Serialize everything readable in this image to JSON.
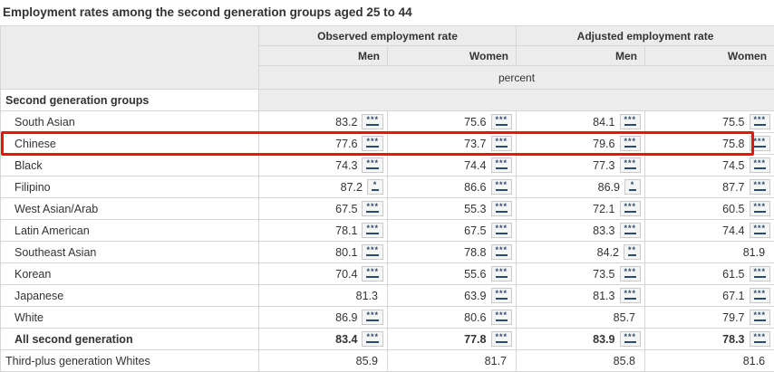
{
  "title": "Employment rates among the second generation groups aged 25 to 44",
  "colors": {
    "header_bg": "#ececec",
    "border": "#d6d6d6",
    "text": "#333333",
    "footnote_navy": "#2b4a6f",
    "highlight_red": "#ee1111"
  },
  "table": {
    "col_groups": [
      {
        "label": "Observed employment rate",
        "sub": [
          "Men",
          "Women"
        ]
      },
      {
        "label": "Adjusted employment rate",
        "sub": [
          "Men",
          "Women"
        ]
      }
    ],
    "unit_row": "percent",
    "group_header": "Second generation groups",
    "rows": [
      {
        "label": "South Asian",
        "indent": true,
        "bold": false,
        "highlight": false,
        "cells": [
          {
            "v": "83.2",
            "m": "***"
          },
          {
            "v": "75.6",
            "m": "***"
          },
          {
            "v": "84.1",
            "m": "***"
          },
          {
            "v": "75.5",
            "m": "***"
          }
        ]
      },
      {
        "label": "Chinese",
        "indent": true,
        "bold": false,
        "highlight": true,
        "cells": [
          {
            "v": "77.6",
            "m": "***"
          },
          {
            "v": "73.7",
            "m": "***"
          },
          {
            "v": "79.6",
            "m": "***"
          },
          {
            "v": "75.8",
            "m": "***"
          }
        ]
      },
      {
        "label": "Black",
        "indent": true,
        "bold": false,
        "highlight": false,
        "cells": [
          {
            "v": "74.3",
            "m": "***"
          },
          {
            "v": "74.4",
            "m": "***"
          },
          {
            "v": "77.3",
            "m": "***"
          },
          {
            "v": "74.5",
            "m": "***"
          }
        ]
      },
      {
        "label": "Filipino",
        "indent": true,
        "bold": false,
        "highlight": false,
        "cells": [
          {
            "v": "87.2",
            "m": "*"
          },
          {
            "v": "86.6",
            "m": "***"
          },
          {
            "v": "86.9",
            "m": "*"
          },
          {
            "v": "87.7",
            "m": "***"
          }
        ]
      },
      {
        "label": "West Asian/Arab",
        "indent": true,
        "bold": false,
        "highlight": false,
        "cells": [
          {
            "v": "67.5",
            "m": "***"
          },
          {
            "v": "55.3",
            "m": "***"
          },
          {
            "v": "72.1",
            "m": "***"
          },
          {
            "v": "60.5",
            "m": "***"
          }
        ]
      },
      {
        "label": "Latin American",
        "indent": true,
        "bold": false,
        "highlight": false,
        "cells": [
          {
            "v": "78.1",
            "m": "***"
          },
          {
            "v": "67.5",
            "m": "***"
          },
          {
            "v": "83.3",
            "m": "***"
          },
          {
            "v": "74.4",
            "m": "***"
          }
        ]
      },
      {
        "label": "Southeast Asian",
        "indent": true,
        "bold": false,
        "highlight": false,
        "cells": [
          {
            "v": "80.1",
            "m": "***"
          },
          {
            "v": "78.8",
            "m": "***"
          },
          {
            "v": "84.2",
            "m": "**"
          },
          {
            "v": "81.9",
            "m": null
          }
        ]
      },
      {
        "label": "Korean",
        "indent": true,
        "bold": false,
        "highlight": false,
        "cells": [
          {
            "v": "70.4",
            "m": "***"
          },
          {
            "v": "55.6",
            "m": "***"
          },
          {
            "v": "73.5",
            "m": "***"
          },
          {
            "v": "61.5",
            "m": "***"
          }
        ]
      },
      {
        "label": "Japanese",
        "indent": true,
        "bold": false,
        "highlight": false,
        "cells": [
          {
            "v": "81.3",
            "m": null
          },
          {
            "v": "63.9",
            "m": "***"
          },
          {
            "v": "81.3",
            "m": "***"
          },
          {
            "v": "67.1",
            "m": "***"
          }
        ]
      },
      {
        "label": "White",
        "indent": true,
        "bold": false,
        "highlight": false,
        "cells": [
          {
            "v": "86.9",
            "m": "***"
          },
          {
            "v": "80.6",
            "m": "***"
          },
          {
            "v": "85.7",
            "m": null
          },
          {
            "v": "79.7",
            "m": "***"
          }
        ]
      },
      {
        "label": "All second generation",
        "indent": true,
        "bold": true,
        "highlight": false,
        "cells": [
          {
            "v": "83.4",
            "m": "***"
          },
          {
            "v": "77.8",
            "m": "***"
          },
          {
            "v": "83.9",
            "m": "***"
          },
          {
            "v": "78.3",
            "m": "***"
          }
        ]
      },
      {
        "label": "Third-plus generation Whites",
        "indent": false,
        "bold": false,
        "highlight": false,
        "cells": [
          {
            "v": "85.9",
            "m": null
          },
          {
            "v": "81.7",
            "m": null
          },
          {
            "v": "85.8",
            "m": null
          },
          {
            "v": "81.6",
            "m": null
          }
        ]
      }
    ]
  }
}
